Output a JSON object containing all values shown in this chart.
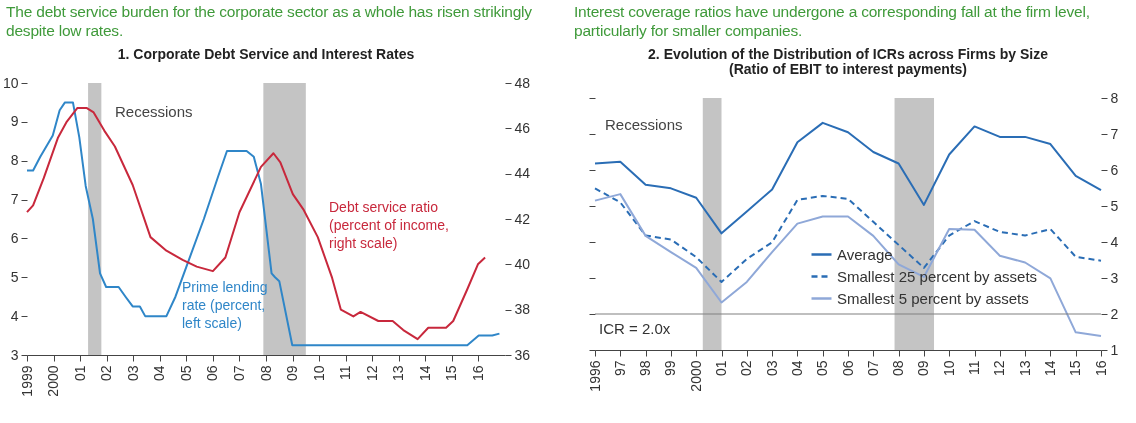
{
  "chart_data": [
    {
      "type": "line",
      "title": "1. Corporate Debt Service and Interest Rates",
      "annotations": [
        "The debt service burden for the corporate sector as a whole has risen strikingly despite low rates."
      ],
      "xlim": [
        1999,
        2017
      ],
      "xticks": [
        1999,
        2000,
        {
          "value": 2001,
          "label": "01"
        },
        {
          "value": 2002,
          "label": "02"
        },
        {
          "value": 2003,
          "label": "03"
        },
        {
          "value": 2004,
          "label": "04"
        },
        {
          "value": 2005,
          "label": "05"
        },
        {
          "value": 2006,
          "label": "06"
        },
        {
          "value": 2007,
          "label": "07"
        },
        {
          "value": 2008,
          "label": "08"
        },
        {
          "value": 2009,
          "label": "09"
        },
        {
          "value": 2010,
          "label": "10"
        },
        {
          "value": 2011,
          "label": "11"
        },
        {
          "value": 2012,
          "label": "12"
        },
        {
          "value": 2013,
          "label": "13"
        },
        {
          "value": 2014,
          "label": "14"
        },
        {
          "value": 2015,
          "label": "15"
        },
        {
          "value": 2016,
          "label": "16"
        }
      ],
      "ylim": [
        3,
        10
      ],
      "yticks": [
        3,
        4,
        5,
        6,
        7,
        8,
        9,
        10
      ],
      "y2lim": [
        36,
        48
      ],
      "y2ticks": [
        36,
        38,
        40,
        42,
        44,
        46,
        48
      ],
      "bands": [
        {
          "axis": "x",
          "from": 2001.3,
          "to": 2001.8,
          "label": "Recessions",
          "color": "#c4c4c4"
        },
        {
          "axis": "x",
          "from": 2007.9,
          "to": 2009.5,
          "color": "#c4c4c4"
        }
      ],
      "legend": false,
      "grid": false,
      "series": [
        {
          "name": "Prime lending rate (percent, left scale)",
          "color": "#2f86c8",
          "x": [
            1999.0,
            1999.23,
            1999.5,
            1999.97,
            2000.23,
            2000.43,
            2000.73,
            2000.97,
            2001.21,
            2001.48,
            2001.75,
            2001.98,
            2002.45,
            2002.71,
            2002.98,
            2003.25,
            2003.45,
            2004.25,
            2004.59,
            2004.99,
            2005.66,
            2006.2,
            2006.53,
            2007.27,
            2007.54,
            2007.81,
            2008.21,
            2008.34,
            2008.5,
            2008.99,
            2015.58,
            2016.01,
            2016.52,
            2016.79
          ],
          "values": [
            7.75,
            7.75,
            8.1,
            8.65,
            9.3,
            9.5,
            9.5,
            8.6,
            7.35,
            6.5,
            5.1,
            4.75,
            4.75,
            4.5,
            4.25,
            4.25,
            4.0,
            4.0,
            4.5,
            5.25,
            6.5,
            7.6,
            8.25,
            8.25,
            8.1,
            7.4,
            5.1,
            5.0,
            4.9,
            3.25,
            3.25,
            3.5,
            3.5,
            3.55
          ]
        },
        {
          "name": "Debt service ratio (percent of income, right scale)",
          "color": "#c8283c",
          "axis": "y2",
          "x": [
            1999.0,
            1999.23,
            1999.63,
            2000.17,
            2000.5,
            2000.9,
            2001.24,
            2001.51,
            2001.91,
            2002.31,
            2002.98,
            2003.65,
            2004.25,
            2004.86,
            2005.39,
            2006.0,
            2006.47,
            2007.0,
            2007.81,
            2008.28,
            2008.54,
            2009.01,
            2009.42,
            2009.95,
            2010.49,
            2010.82,
            2011.29,
            2011.56,
            2012.23,
            2012.77,
            2013.17,
            2013.71,
            2014.11,
            2014.78,
            2015.05,
            2015.58,
            2015.98,
            2016.25
          ],
          "values": [
            42.3,
            42.6,
            43.8,
            45.6,
            46.3,
            46.9,
            46.9,
            46.7,
            45.9,
            45.2,
            43.5,
            41.2,
            40.6,
            40.2,
            39.9,
            39.7,
            40.3,
            42.3,
            44.3,
            44.9,
            44.5,
            43.1,
            42.4,
            41.2,
            39.4,
            38.0,
            37.7,
            37.9,
            37.5,
            37.5,
            37.1,
            36.7,
            37.2,
            37.2,
            37.5,
            38.9,
            40.0,
            40.3
          ]
        }
      ]
    },
    {
      "type": "line",
      "title": "2. Evolution of the Distribution of ICRs across Firms by Size",
      "subtitle": "(Ratio of EBIT to interest payments)",
      "annotations": [
        "Interest coverage ratios have undergone a corresponding fall at the firm level, particularly for smaller companies."
      ],
      "x": [
        1996,
        1997,
        1998,
        1999,
        2000,
        2001,
        2002,
        2003,
        2004,
        2005,
        2006,
        2007,
        2008,
        2009,
        2010,
        2011,
        2012,
        2013,
        2014,
        2015,
        2016
      ],
      "xlim": [
        1996,
        2016
      ],
      "xticks": [
        1996,
        {
          "value": 1997,
          "label": "97"
        },
        {
          "value": 1998,
          "label": "98"
        },
        {
          "value": 1999,
          "label": "99"
        },
        2000,
        {
          "value": 2001,
          "label": "01"
        },
        {
          "value": 2002,
          "label": "02"
        },
        {
          "value": 2003,
          "label": "03"
        },
        {
          "value": 2004,
          "label": "04"
        },
        {
          "value": 2005,
          "label": "05"
        },
        {
          "value": 2006,
          "label": "06"
        },
        {
          "value": 2007,
          "label": "07"
        },
        {
          "value": 2008,
          "label": "08"
        },
        {
          "value": 2009,
          "label": "09"
        },
        {
          "value": 2010,
          "label": "10"
        },
        {
          "value": 2011,
          "label": "11"
        },
        {
          "value": 2012,
          "label": "12"
        },
        {
          "value": 2013,
          "label": "13"
        },
        {
          "value": 2014,
          "label": "14"
        },
        {
          "value": 2015,
          "label": "15"
        },
        {
          "value": 2016,
          "label": "16"
        }
      ],
      "y2lim": [
        1,
        8
      ],
      "y2ticks": [
        1,
        2,
        3,
        4,
        5,
        6,
        7,
        8
      ],
      "bands": [
        {
          "axis": "x",
          "from": 2000.26,
          "to": 2001.0,
          "label": "Recessions",
          "color": "#c4c4c4"
        },
        {
          "axis": "x",
          "from": 2007.84,
          "to": 2009.4,
          "color": "#c4c4c4"
        }
      ],
      "ref_lines": [
        {
          "axis": "y2",
          "value": 2,
          "label": "ICR = 2.0x",
          "color": "#808080"
        }
      ],
      "legend": "bottom",
      "grid": false,
      "series": [
        {
          "name": "Average",
          "color": "#2a6db5",
          "line_style": "solid",
          "axis": "y2",
          "values": [
            6.18,
            6.23,
            5.59,
            5.49,
            5.23,
            4.24,
            4.85,
            5.46,
            6.77,
            7.31,
            7.05,
            6.5,
            6.18,
            5.03,
            6.43,
            7.21,
            6.92,
            6.92,
            6.72,
            5.84,
            5.44
          ]
        },
        {
          "name": "Smallest 25 percent by assets",
          "color": "#2a6db5",
          "line_style": "dashed",
          "axis": "y2",
          "values": [
            5.49,
            5.1,
            4.18,
            4.07,
            3.58,
            2.89,
            3.53,
            3.99,
            5.17,
            5.28,
            5.2,
            4.56,
            3.92,
            3.28,
            4.18,
            4.58,
            4.28,
            4.18,
            4.36,
            3.59,
            3.48
          ]
        },
        {
          "name": "Smallest 5 percent by assets",
          "color": "#8fa8d8",
          "line_style": "solid",
          "axis": "y2",
          "values": [
            5.15,
            5.33,
            4.17,
            3.72,
            3.28,
            2.32,
            2.89,
            3.72,
            4.51,
            4.71,
            4.71,
            4.17,
            3.38,
            3.03,
            4.36,
            4.34,
            3.62,
            3.43,
            2.99,
            1.49,
            1.39
          ]
        }
      ]
    }
  ]
}
